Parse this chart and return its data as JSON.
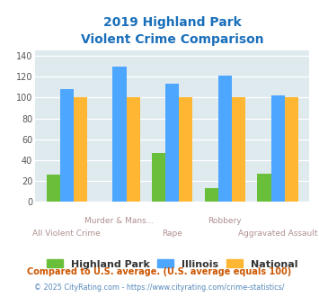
{
  "title_line1": "2019 Highland Park",
  "title_line2": "Violent Crime Comparison",
  "categories": [
    "All Violent Crime",
    "Murder & Mans...",
    "Rape",
    "Robbery",
    "Aggravated Assault"
  ],
  "highland_park": [
    26,
    0,
    47,
    13,
    27
  ],
  "illinois": [
    108,
    130,
    113,
    121,
    102
  ],
  "national": [
    100,
    100,
    100,
    100,
    100
  ],
  "color_hp": "#6abf3a",
  "color_il": "#4da6ff",
  "color_nat": "#ffb733",
  "ylim": [
    0,
    145
  ],
  "yticks": [
    0,
    20,
    40,
    60,
    80,
    100,
    120,
    140
  ],
  "bg_color": "#deeaee",
  "title_color": "#1a6fba",
  "xticklabel_color": "#b09090",
  "footnote1": "Compared to U.S. average. (U.S. average equals 100)",
  "footnote2": "© 2025 CityRating.com - https://www.cityrating.com/crime-statistics/",
  "footnote1_color": "#cc5500",
  "footnote2_color": "#5588bb",
  "legend_labels": [
    "Highland Park",
    "Illinois",
    "National"
  ]
}
